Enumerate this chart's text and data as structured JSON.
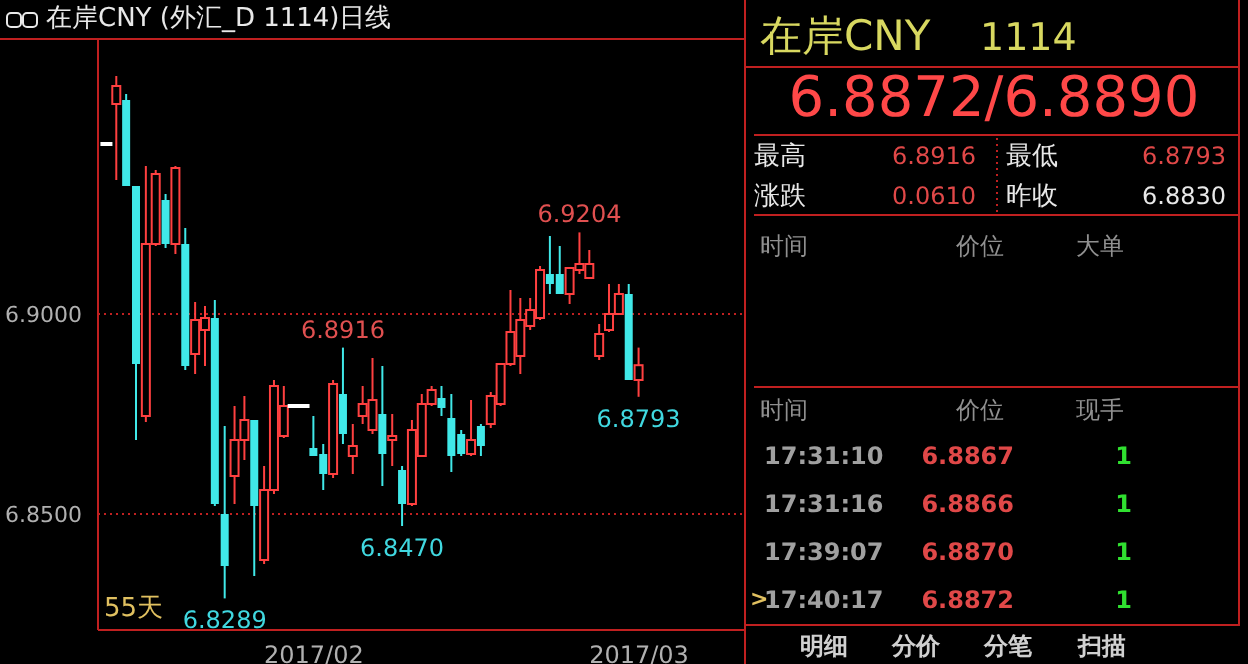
{
  "chart_data": [
    {
      "type": "candlestick",
      "title": "在岸CNY (外汇_D 1114)日线",
      "categories": [
        null,
        null,
        null,
        null,
        null,
        null,
        null,
        null,
        null,
        null,
        null,
        null,
        null,
        null,
        null,
        null,
        null,
        null,
        null,
        null,
        null,
        "2017/02",
        null,
        null,
        null,
        null,
        null,
        null,
        null,
        null,
        null,
        null,
        null,
        null,
        null,
        null,
        null,
        null,
        null,
        null,
        null,
        null,
        null,
        null,
        null,
        null,
        null,
        null,
        null,
        null,
        null,
        null,
        null,
        null,
        "2017/03"
      ],
      "ohlc": [
        [
          6.9425,
          6.9425,
          6.9425,
          6.9425
        ],
        [
          6.9525,
          6.9595,
          6.9335,
          6.957
        ],
        [
          6.9535,
          6.955,
          6.932,
          6.932
        ],
        [
          6.932,
          6.932,
          6.8685,
          6.8875
        ],
        [
          6.8745,
          6.937,
          6.873,
          6.9175
        ],
        [
          6.9175,
          6.936,
          6.917,
          6.935
        ],
        [
          6.9285,
          6.93,
          6.9165,
          6.9175
        ],
        [
          6.9175,
          6.937,
          6.915,
          6.9365
        ],
        [
          6.9175,
          6.9215,
          6.886,
          6.887
        ],
        [
          6.89,
          6.903,
          6.885,
          6.8985
        ],
        [
          6.896,
          6.902,
          6.887,
          6.899
        ],
        [
          6.899,
          6.9035,
          6.852,
          6.8525
        ],
        [
          6.85,
          6.872,
          6.8289,
          6.837
        ],
        [
          6.8595,
          6.877,
          6.8525,
          6.8685
        ],
        [
          6.8685,
          6.8795,
          6.8635,
          6.8735
        ],
        [
          6.8735,
          6.8735,
          6.8345,
          6.852
        ],
        [
          6.8385,
          6.862,
          6.8375,
          6.856
        ],
        [
          6.856,
          6.8835,
          6.855,
          6.882
        ],
        [
          6.8695,
          6.882,
          6.869,
          6.877
        ],
        [
          6.877,
          6.877,
          6.877,
          6.877
        ],
        [
          6.877,
          6.877,
          6.877,
          6.877
        ],
        [
          6.8665,
          6.8745,
          6.8645,
          6.8645
        ],
        [
          6.865,
          6.8675,
          6.856,
          6.86
        ],
        [
          6.86,
          6.8835,
          6.859,
          6.8825
        ],
        [
          6.88,
          6.8916,
          6.8675,
          6.87
        ],
        [
          6.8645,
          6.8725,
          6.86,
          6.867
        ],
        [
          6.8745,
          6.882,
          6.8725,
          6.8775
        ],
        [
          6.871,
          6.889,
          6.87,
          6.8785
        ],
        [
          6.875,
          6.887,
          6.857,
          6.865
        ],
        [
          6.8685,
          6.875,
          6.862,
          6.8695
        ],
        [
          6.861,
          6.862,
          6.847,
          6.8525
        ],
        [
          6.8525,
          6.8735,
          6.852,
          6.871
        ],
        [
          6.8645,
          6.88,
          6.8645,
          6.8775
        ],
        [
          6.8775,
          6.882,
          6.877,
          6.881
        ],
        [
          6.879,
          6.882,
          6.8745,
          6.8765
        ],
        [
          6.874,
          6.88,
          6.8605,
          6.8645
        ],
        [
          6.87,
          6.871,
          6.8645,
          6.865
        ],
        [
          6.865,
          6.8785,
          6.8645,
          6.8685
        ],
        [
          6.872,
          6.8725,
          6.8645,
          6.867
        ],
        [
          6.8725,
          6.8805,
          6.8715,
          6.8795
        ],
        [
          6.8775,
          6.8875,
          6.877,
          6.8875
        ],
        [
          6.8875,
          6.906,
          6.887,
          6.8955
        ],
        [
          6.8895,
          6.904,
          6.885,
          6.8985
        ],
        [
          6.897,
          6.904,
          6.896,
          6.901
        ],
        [
          6.899,
          6.912,
          6.8985,
          6.911
        ],
        [
          6.91,
          6.9195,
          6.905,
          6.9075
        ],
        [
          6.91,
          6.917,
          6.905,
          6.905
        ],
        [
          6.905,
          6.9115,
          6.9025,
          6.9115
        ],
        [
          6.911,
          6.9204,
          6.91,
          6.9125
        ],
        [
          6.909,
          6.916,
          6.909,
          6.9125
        ],
        [
          6.8895,
          6.8975,
          6.8885,
          6.895
        ],
        [
          6.896,
          6.9075,
          6.8955,
          6.9
        ],
        [
          6.9,
          6.9075,
          6.9,
          6.905
        ],
        [
          6.905,
          6.9075,
          6.8835,
          6.8835
        ],
        [
          6.8835,
          6.8916,
          6.8793,
          6.8872
        ]
      ],
      "colors": [
        "#ffffff",
        "#ff4040",
        "#40e8e8",
        "#40e8e8",
        "#ff4040",
        "#ff4040",
        "#40e8e8",
        "#ff4040",
        "#40e8e8",
        "#ff4040",
        "#ff4040",
        "#40e8e8",
        "#40e8e8",
        "#ff4040",
        "#ff4040",
        "#40e8e8",
        "#ff4040",
        "#ff4040",
        "#ff4040",
        "#ffffff",
        "#ffffff",
        "#40e8e8",
        "#40e8e8",
        "#ff4040",
        "#40e8e8",
        "#ff4040",
        "#ff4040",
        "#ff4040",
        "#40e8e8",
        "#ff4040",
        "#40e8e8",
        "#ff4040",
        "#ff4040",
        "#ff4040",
        "#40e8e8",
        "#40e8e8",
        "#40e8e8",
        "#ff4040",
        "#40e8e8",
        "#ff4040",
        "#ff4040",
        "#ff4040",
        "#ff4040",
        "#ff4040",
        "#ff4040",
        "#40e8e8",
        "#40e8e8",
        "#ff4040",
        "#ff4040",
        "#ff4040",
        "#ff4040",
        "#ff4040",
        "#ff4040",
        "#40e8e8",
        "#ff4040"
      ],
      "ylim": [
        6.821,
        6.9685
      ],
      "yticks": [
        {
          "value": 6.9,
          "label": "6.9000"
        },
        {
          "value": 6.85,
          "label": "6.8500"
        }
      ],
      "grid": "y",
      "annotations": [
        "55天",
        {
          "text": "6.9204",
          "y": 6.9204
        },
        {
          "text": "6.8916",
          "y": 6.8916
        },
        {
          "text": "6.8289",
          "y": 6.8289
        },
        {
          "text": "6.8470",
          "y": 6.847
        },
        {
          "text": "6.8793",
          "y": 6.8793
        }
      ]
    },
    {
      "type": "other",
      "annotations": [
        "在岸CNY",
        "1114",
        "6.8872/6.8890",
        "最高",
        "6.8916",
        "最低",
        "6.8793",
        "涨跌",
        "0.0610",
        "昨收",
        "6.8830",
        "时间",
        "价位",
        "大单",
        "时间",
        "价位",
        "现手",
        "17:31:10",
        "6.8867",
        "1",
        "17:31:16",
        "6.8866",
        "1",
        "17:39:07",
        "6.8870",
        "1",
        "17:40:17",
        "6.8872",
        "1",
        "明细",
        "分价",
        "分笔",
        "扫描",
        ">"
      ]
    }
  ]
}
